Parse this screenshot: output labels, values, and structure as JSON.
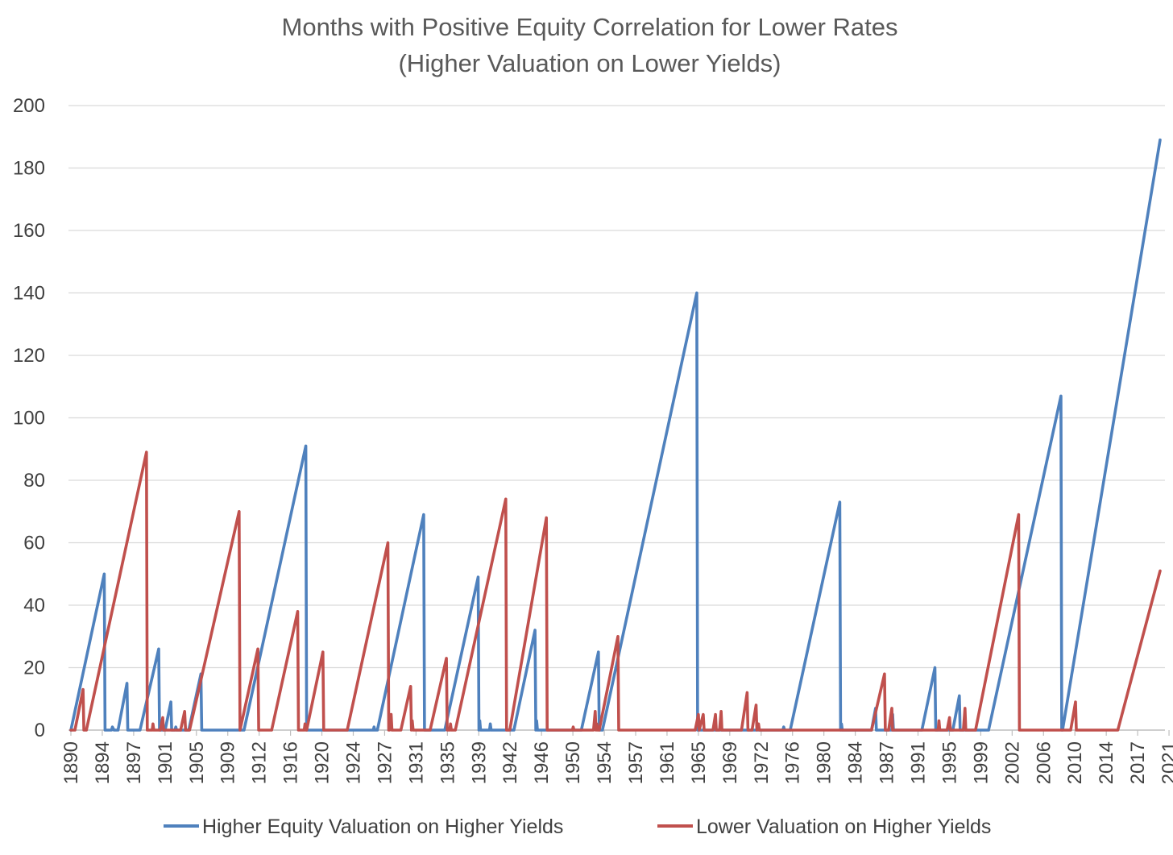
{
  "chart_data": {
    "type": "line",
    "title": "Months with Positive Equity Correlation for Lower Rates",
    "subtitle": "(Higher Valuation on Lower Yields)",
    "xlabel": "",
    "ylabel": "",
    "ylim": [
      0,
      200
    ],
    "xlim": [
      1890,
      2024.5
    ],
    "y_ticks": [
      0,
      20,
      40,
      60,
      80,
      100,
      120,
      140,
      160,
      180,
      200
    ],
    "x_tick_labels": [
      "1890",
      "1894",
      "1897",
      "1901",
      "1905",
      "1909",
      "1912",
      "1916",
      "1920",
      "1924",
      "1927",
      "1931",
      "1935",
      "1939",
      "1942",
      "1946",
      "1950",
      "1954",
      "1957",
      "1961",
      "1965",
      "1969",
      "1972",
      "1976",
      "1980",
      "1984",
      "1987",
      "1991",
      "1995",
      "1999",
      "2002",
      "2006",
      "2010",
      "2014",
      "2017",
      "2021"
    ],
    "grid": true,
    "legend_position": "bottom",
    "series": [
      {
        "name": "Higher Equity Valuation on Higher Yields",
        "color": "#4F81BD",
        "points": [
          [
            1890.0,
            0
          ],
          [
            1894.1,
            50
          ],
          [
            1894.2,
            0
          ],
          [
            1895.0,
            0
          ],
          [
            1895.1,
            1
          ],
          [
            1895.3,
            0
          ],
          [
            1895.8,
            0
          ],
          [
            1896.9,
            15
          ],
          [
            1897.0,
            0
          ],
          [
            1898.5,
            0
          ],
          [
            1900.8,
            26
          ],
          [
            1900.9,
            0
          ],
          [
            1901.6,
            0
          ],
          [
            1902.3,
            9
          ],
          [
            1902.4,
            0
          ],
          [
            1902.8,
            0
          ],
          [
            1902.9,
            1
          ],
          [
            1903.0,
            0
          ],
          [
            1904.5,
            0
          ],
          [
            1906.0,
            18
          ],
          [
            1906.1,
            0
          ],
          [
            1911.3,
            0
          ],
          [
            1918.9,
            91
          ],
          [
            1919.0,
            0
          ],
          [
            1927.2,
            0
          ],
          [
            1927.3,
            1
          ],
          [
            1927.4,
            0
          ],
          [
            1927.7,
            0
          ],
          [
            1933.4,
            69
          ],
          [
            1933.5,
            0
          ],
          [
            1936.0,
            0
          ],
          [
            1940.1,
            49
          ],
          [
            1940.2,
            0
          ],
          [
            1940.3,
            3
          ],
          [
            1940.4,
            0
          ],
          [
            1941.5,
            0
          ],
          [
            1941.6,
            2
          ],
          [
            1941.7,
            0
          ],
          [
            1944.5,
            0
          ],
          [
            1947.1,
            32
          ],
          [
            1947.2,
            0
          ],
          [
            1947.3,
            3
          ],
          [
            1947.4,
            0
          ],
          [
            1952.8,
            0
          ],
          [
            1954.9,
            25
          ],
          [
            1955.0,
            0
          ],
          [
            1955.4,
            0
          ],
          [
            1967.0,
            140
          ],
          [
            1967.1,
            0
          ],
          [
            1977.6,
            0
          ],
          [
            1977.7,
            1
          ],
          [
            1977.8,
            0
          ],
          [
            1978.5,
            0
          ],
          [
            1984.6,
            73
          ],
          [
            1984.7,
            0
          ],
          [
            1984.8,
            2
          ],
          [
            1984.9,
            0
          ],
          [
            1988.5,
            0
          ],
          [
            1989.0,
            7
          ],
          [
            1989.1,
            0
          ],
          [
            1991.0,
            0
          ],
          [
            1991.1,
            5
          ],
          [
            1991.2,
            0
          ],
          [
            1994.7,
            0
          ],
          [
            1996.3,
            20
          ],
          [
            1996.4,
            0
          ],
          [
            1998.5,
            0
          ],
          [
            1999.3,
            11
          ],
          [
            1999.4,
            0
          ],
          [
            2002.9,
            0
          ],
          [
            2011.8,
            107
          ],
          [
            2011.9,
            0
          ],
          [
            2012.0,
            0
          ],
          [
            2024.0,
            189
          ]
        ]
      },
      {
        "name": "Lower Valuation on Higher Yields",
        "color": "#C0504D",
        "points": [
          [
            1890.0,
            0
          ],
          [
            1890.5,
            0
          ],
          [
            1891.5,
            13
          ],
          [
            1891.6,
            0
          ],
          [
            1891.9,
            0
          ],
          [
            1899.3,
            89
          ],
          [
            1899.4,
            0
          ],
          [
            1900.0,
            0
          ],
          [
            1900.1,
            2
          ],
          [
            1900.2,
            0
          ],
          [
            1901.0,
            0
          ],
          [
            1901.3,
            4
          ],
          [
            1901.4,
            0
          ],
          [
            1903.5,
            0
          ],
          [
            1904.0,
            6
          ],
          [
            1904.1,
            0
          ],
          [
            1904.6,
            0
          ],
          [
            1910.7,
            70
          ],
          [
            1910.8,
            0
          ],
          [
            1913.0,
            26
          ],
          [
            1913.1,
            0
          ],
          [
            1914.7,
            0
          ],
          [
            1917.9,
            38
          ],
          [
            1918.0,
            0
          ],
          [
            1918.7,
            0
          ],
          [
            1918.8,
            2
          ],
          [
            1918.9,
            0
          ],
          [
            1919.0,
            0
          ],
          [
            1921.0,
            25
          ],
          [
            1921.1,
            0
          ],
          [
            1924.0,
            0
          ],
          [
            1929.0,
            60
          ],
          [
            1929.1,
            0
          ],
          [
            1929.2,
            0
          ],
          [
            1929.4,
            5
          ],
          [
            1929.5,
            0
          ],
          [
            1930.6,
            0
          ],
          [
            1931.8,
            14
          ],
          [
            1931.9,
            0
          ],
          [
            1932.0,
            3
          ],
          [
            1932.1,
            0
          ],
          [
            1934.2,
            0
          ],
          [
            1936.2,
            23
          ],
          [
            1936.3,
            0
          ],
          [
            1936.6,
            0
          ],
          [
            1936.7,
            2
          ],
          [
            1936.8,
            0
          ],
          [
            1937.3,
            0
          ],
          [
            1943.5,
            74
          ],
          [
            1943.6,
            0
          ],
          [
            1944.0,
            0
          ],
          [
            1948.5,
            68
          ],
          [
            1948.6,
            0
          ],
          [
            1951.7,
            0
          ],
          [
            1951.8,
            1
          ],
          [
            1951.9,
            0
          ],
          [
            1954.3,
            0
          ],
          [
            1954.5,
            6
          ],
          [
            1954.6,
            0
          ],
          [
            1954.7,
            2
          ],
          [
            1954.8,
            0
          ],
          [
            1955.0,
            0
          ],
          [
            1957.3,
            30
          ],
          [
            1957.4,
            0
          ],
          [
            1966.8,
            0
          ],
          [
            1967.2,
            5
          ],
          [
            1967.3,
            0
          ],
          [
            1967.8,
            5
          ],
          [
            1967.9,
            0
          ],
          [
            1969.0,
            0
          ],
          [
            1969.3,
            5
          ],
          [
            1969.4,
            0
          ],
          [
            1969.8,
            0
          ],
          [
            1970.0,
            6
          ],
          [
            1970.1,
            0
          ],
          [
            1972.5,
            0
          ],
          [
            1973.2,
            12
          ],
          [
            1973.3,
            0
          ],
          [
            1973.8,
            0
          ],
          [
            1974.3,
            8
          ],
          [
            1974.4,
            0
          ],
          [
            1974.6,
            2
          ],
          [
            1974.7,
            0
          ],
          [
            1988.5,
            0
          ],
          [
            1990.1,
            18
          ],
          [
            1990.2,
            0
          ],
          [
            1990.6,
            0
          ],
          [
            1991.0,
            7
          ],
          [
            1991.1,
            0
          ],
          [
            1996.7,
            0
          ],
          [
            1996.8,
            3
          ],
          [
            1996.9,
            0
          ],
          [
            1997.8,
            0
          ],
          [
            1998.1,
            4
          ],
          [
            1998.2,
            0
          ],
          [
            1999.8,
            0
          ],
          [
            2000.0,
            7
          ],
          [
            2000.1,
            0
          ],
          [
            2001.3,
            0
          ],
          [
            2006.6,
            69
          ],
          [
            2006.7,
            0
          ],
          [
            2013.0,
            0
          ],
          [
            2013.6,
            9
          ],
          [
            2013.7,
            0
          ],
          [
            2018.8,
            0
          ],
          [
            2024.0,
            51
          ]
        ]
      }
    ]
  }
}
